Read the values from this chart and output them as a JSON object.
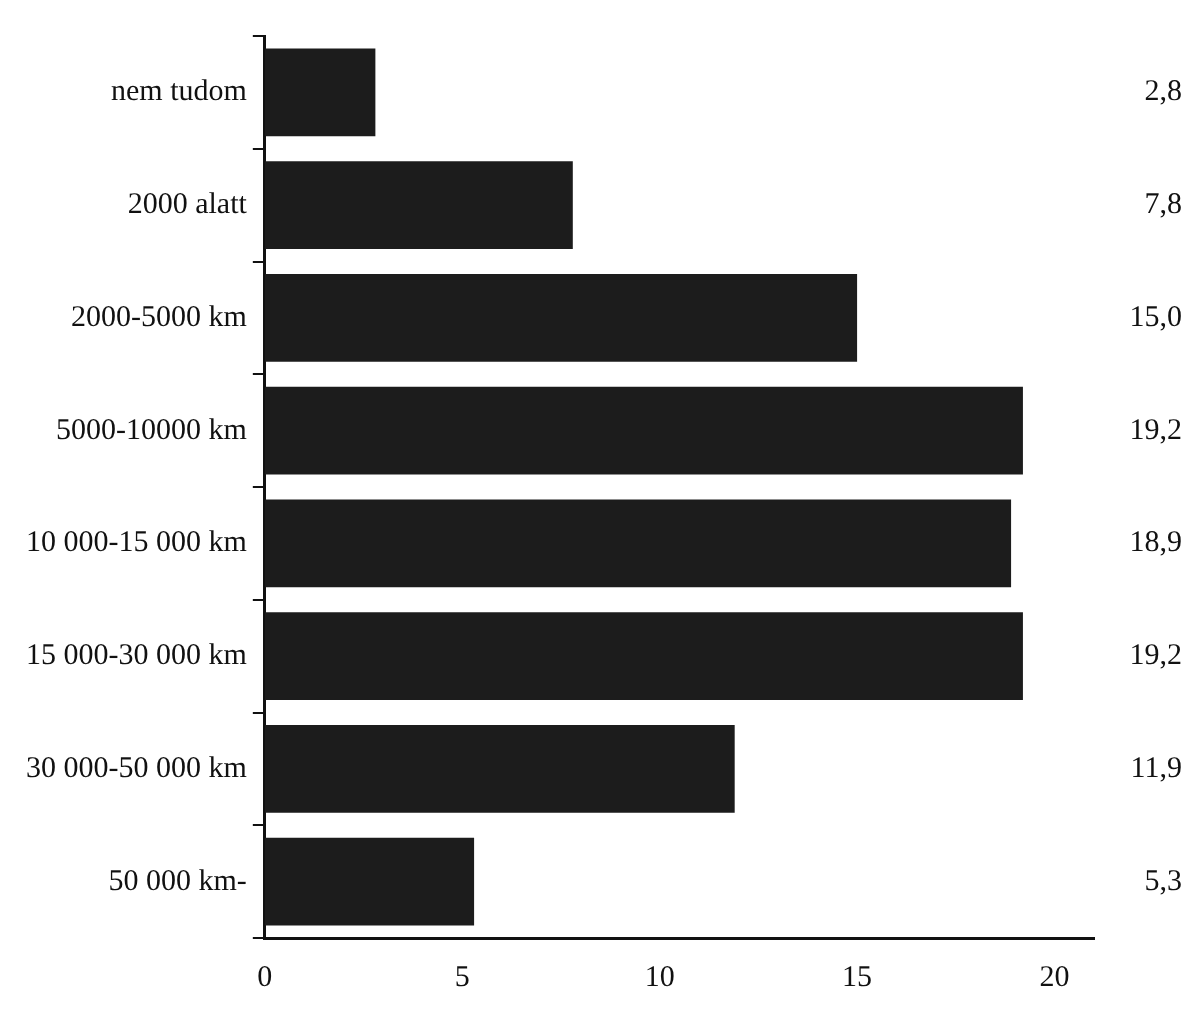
{
  "chart_data": {
    "type": "bar",
    "orientation": "horizontal",
    "categories": [
      "nem tudom",
      "2000 alatt",
      "2000-5000 km",
      "5000-10000 km",
      "10 000-15 000 km",
      "15 000-30 000 km",
      "30 000-50 000 km",
      "50 000 km-"
    ],
    "values": [
      2.8,
      7.8,
      15.0,
      19.2,
      18.9,
      19.2,
      11.9,
      5.3
    ],
    "value_labels": [
      "2,8",
      "7,8",
      "15,0",
      "19,2",
      "18,9",
      "19,2",
      "11,9",
      "5,3"
    ],
    "color": "#1c1c1c",
    "xlim": [
      0,
      21
    ],
    "xticks": [
      0,
      5,
      10,
      15,
      20
    ],
    "grid": false
  }
}
